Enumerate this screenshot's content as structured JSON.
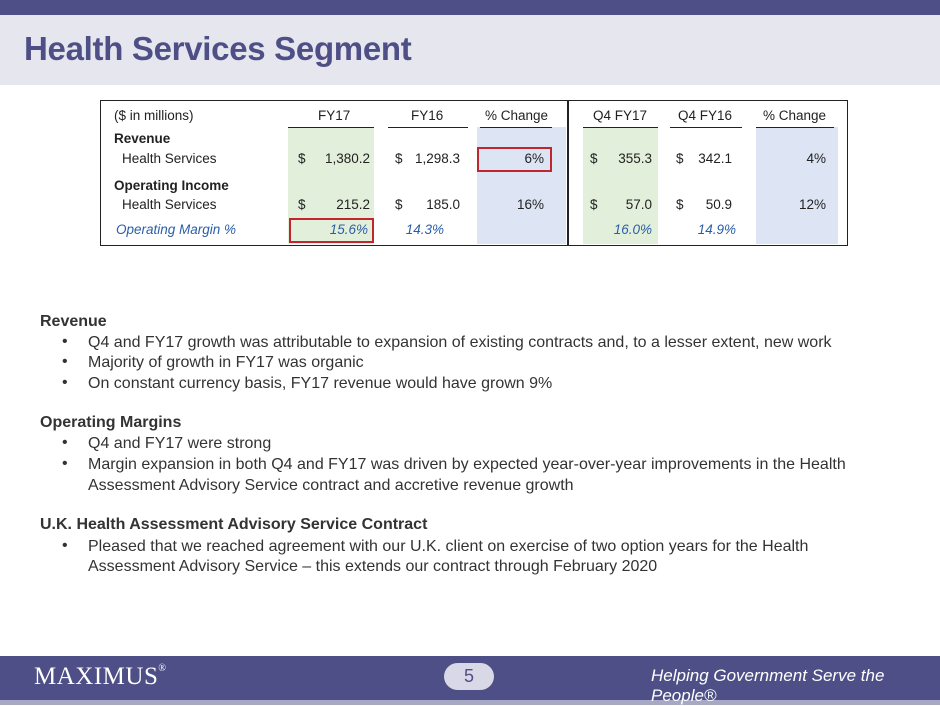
{
  "header": {
    "title": "Health Services Segment"
  },
  "table": {
    "units_label": "($ in millions)",
    "columns": [
      "FY17",
      "FY16",
      "% Change",
      "Q4 FY17",
      "Q4 FY16",
      "% Change"
    ],
    "revenue_label": "Revenue",
    "revenue_row": {
      "label": "Health Services",
      "fy17_sym": "$",
      "fy17": "1,380.2",
      "fy16_sym": "$",
      "fy16": "1,298.3",
      "fy_change": "6%",
      "q4fy17_sym": "$",
      "q4fy17": "355.3",
      "q4fy16_sym": "$",
      "q4fy16": "342.1",
      "q4_change": "4%"
    },
    "opinc_label": "Operating Income",
    "opinc_row": {
      "label": "Health Services",
      "fy17_sym": "$",
      "fy17": "215.2",
      "fy16_sym": "$",
      "fy16": "185.0",
      "fy_change": "16%",
      "q4fy17_sym": "$",
      "q4fy17": "57.0",
      "q4fy16_sym": "$",
      "q4fy16": "50.9",
      "q4_change": "12%"
    },
    "margin_row": {
      "label": "Operating Margin %",
      "fy17": "15.6%",
      "fy16": "14.3%",
      "q4fy17": "16.0%",
      "q4fy16": "14.9%"
    }
  },
  "sections": [
    {
      "heading": "Revenue",
      "bullets": [
        "Q4 and FY17 growth was attributable to expansion of existing contracts and, to a lesser extent, new work",
        "Majority of growth in FY17 was organic",
        "On constant currency basis, FY17 revenue would have grown 9%"
      ]
    },
    {
      "heading": "Operating Margins",
      "bullets": [
        "Q4 and FY17 were strong",
        "Margin expansion in both Q4 and FY17 was driven by expected year-over-year improvements in the Health",
        "Assessment Advisory Service contract and accretive revenue growth"
      ]
    },
    {
      "heading": "U.K. Health Assessment Advisory Service Contract",
      "bullets": [
        "Pleased that we reached agreement with our U.K. client on exercise of two option years for the Health",
        "Assessment Advisory Service – this extends our contract through February 2020"
      ]
    }
  ],
  "bullet_glyph": "•",
  "footer": {
    "logo": "MAXIMUS",
    "logo_mark": "®",
    "page_number": "5",
    "tagline": "Helping Government Serve the People®"
  }
}
